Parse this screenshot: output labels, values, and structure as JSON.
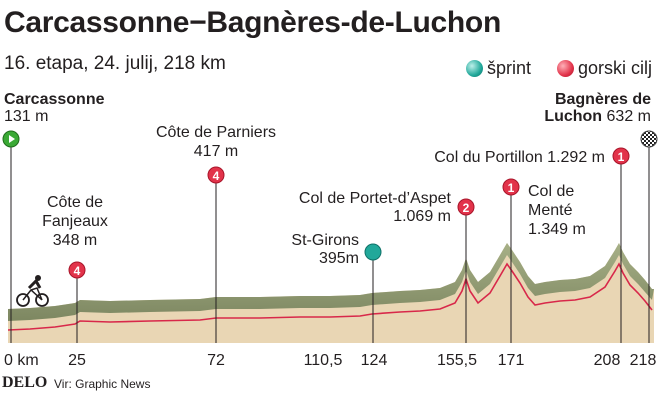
{
  "header": {
    "title": "Carcassonne−Bagnères-de-Luchon",
    "subtitle": "16. etapa, 24. julij, 218 km"
  },
  "legend": {
    "sprint": "šprint",
    "kom": "gorski cilj"
  },
  "start": {
    "name": "Carcassonne",
    "elevation": "131 m"
  },
  "finish": {
    "name_line1": "Bagnères de",
    "name_line2": "Luchon",
    "elevation": "632 m"
  },
  "points": [
    {
      "id": "fanjeaux",
      "lines": [
        "Côte de",
        "Fanjeaux",
        "348 m"
      ],
      "category": "4",
      "type": "kom",
      "km": 25
    },
    {
      "id": "parniers",
      "lines": [
        "Côte de Parniers",
        "417 m"
      ],
      "category": "4",
      "type": "kom",
      "km": 72
    },
    {
      "id": "stgirons",
      "lines": [
        "St-Girons",
        "395m"
      ],
      "category": "",
      "type": "sprint",
      "km": 124
    },
    {
      "id": "portet",
      "lines": [
        "Col de Portet-d’Aspet",
        "1.069 m"
      ],
      "category": "2",
      "type": "kom",
      "km": 155.5
    },
    {
      "id": "mente",
      "lines": [
        "Col de",
        "Menté",
        "1.349 m"
      ],
      "category": "1",
      "type": "kom",
      "km": 171
    },
    {
      "id": "portillon",
      "lines": [
        "Col du Portillon 1.292 m"
      ],
      "category": "1",
      "type": "kom",
      "km": 208
    }
  ],
  "km_axis": [
    "0 km",
    "25",
    "72",
    "110,5",
    "124",
    "155,5",
    "171",
    "208",
    "218"
  ],
  "footer": {
    "brand": "DELO",
    "source": "Vir: Graphic News"
  },
  "colors": {
    "terrain_top": "#8f9a6f",
    "terrain_body": "#e9d6b4",
    "route_line": "#d8284a",
    "kom": "#e2334a",
    "sprint": "#21a89a"
  }
}
